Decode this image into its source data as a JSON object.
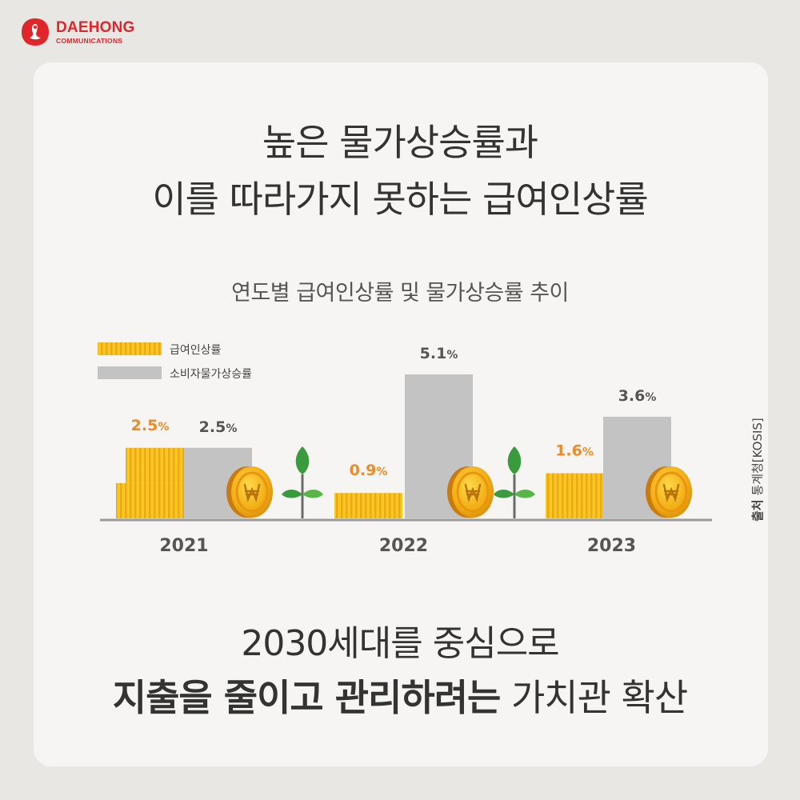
{
  "brand": {
    "name": "DAEHONG",
    "sub": "COMMUNICATIONS",
    "accent": "#e0262a"
  },
  "title": {
    "line1": "높은 물가상승률과",
    "line2": "이를 따라가지 못하는 급여인상률"
  },
  "chart_data": {
    "type": "bar",
    "title": "연도별 급여인상률 및 물가상승률 추이",
    "categories": [
      "2021",
      "2022",
      "2023"
    ],
    "series": [
      {
        "name": "급여인상률",
        "values": [
          2.5,
          0.9,
          1.6
        ],
        "labels": [
          "2.5%",
          "0.9%",
          "1.6%"
        ],
        "color": "#f6c91d",
        "label_color": "#f08a24"
      },
      {
        "name": "소비자물가상승률",
        "values": [
          2.5,
          5.1,
          3.6
        ],
        "labels": [
          "2.5%",
          "5.1%",
          "3.6%"
        ],
        "color": "#c3c3c3",
        "label_color": "#555555"
      }
    ],
    "ylim": [
      0,
      5.1
    ],
    "legend": "top-left",
    "grid": false
  },
  "source": {
    "label": "출처",
    "text": "통계청[KOSIS]"
  },
  "bottom": {
    "line1": "2030세대를 중심으로",
    "line2_bold": "지출을 줄이고 관리하려는",
    "line2_normal": " 가치관 확산"
  }
}
